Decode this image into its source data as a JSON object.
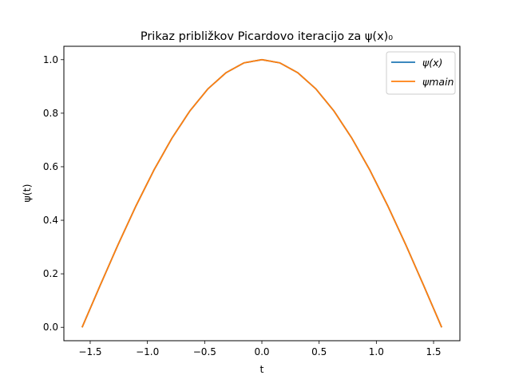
{
  "chart_data": {
    "type": "line",
    "title": "Prikaz približkov Picardovo iteracijo za ψ(x)₀",
    "xlabel": "t",
    "ylabel": "ψ(t)",
    "xlim": [
      -1.73,
      1.73
    ],
    "ylim": [
      -0.05,
      1.05
    ],
    "xticks": [
      -1.5,
      -1.0,
      -0.5,
      0.0,
      0.5,
      1.0,
      1.5
    ],
    "xtick_labels": [
      "−1.5",
      "−1.0",
      "−0.5",
      "0.0",
      "0.5",
      "1.0",
      "1.5"
    ],
    "yticks": [
      0.0,
      0.2,
      0.4,
      0.6,
      0.8,
      1.0
    ],
    "ytick_labels": [
      "0.0",
      "0.2",
      "0.4",
      "0.6",
      "0.8",
      "1.0"
    ],
    "grid": false,
    "legend_position": "top-right",
    "series": [
      {
        "name": "ψ(x)",
        "color": "#1f77b4",
        "x": [
          -1.5708,
          -1.4137,
          -1.2566,
          -1.0996,
          -0.9425,
          -0.7854,
          -0.6283,
          -0.4712,
          -0.3142,
          -0.1571,
          0.0,
          0.1571,
          0.3142,
          0.4712,
          0.6283,
          0.7854,
          0.9425,
          1.0996,
          1.2566,
          1.4137,
          1.5708
        ],
        "y": [
          0.0,
          0.156,
          0.309,
          0.454,
          0.588,
          0.707,
          0.809,
          0.891,
          0.951,
          0.988,
          1.0,
          0.988,
          0.951,
          0.891,
          0.809,
          0.707,
          0.588,
          0.454,
          0.309,
          0.156,
          0.0
        ]
      },
      {
        "name": "ψmain",
        "color": "#ff7f0e",
        "x": [
          -1.5708,
          -1.4137,
          -1.2566,
          -1.0996,
          -0.9425,
          -0.7854,
          -0.6283,
          -0.4712,
          -0.3142,
          -0.1571,
          0.0,
          0.1571,
          0.3142,
          0.4712,
          0.6283,
          0.7854,
          0.9425,
          1.0996,
          1.2566,
          1.4137,
          1.5708
        ],
        "y": [
          0.0,
          0.156,
          0.309,
          0.454,
          0.588,
          0.707,
          0.809,
          0.891,
          0.951,
          0.988,
          1.0,
          0.988,
          0.951,
          0.891,
          0.809,
          0.707,
          0.588,
          0.454,
          0.309,
          0.156,
          0.0
        ]
      }
    ]
  }
}
